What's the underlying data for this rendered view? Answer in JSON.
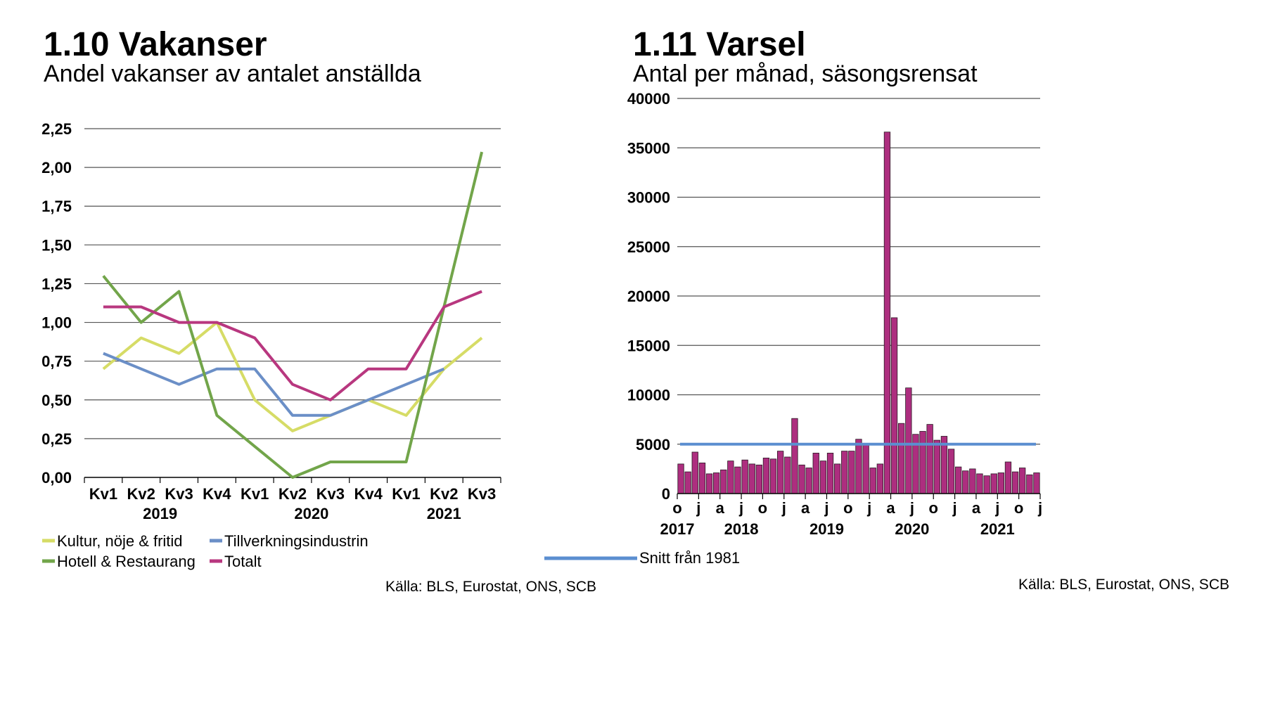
{
  "panels": {
    "left": {
      "title": "1.10 Vakanser",
      "subtitle": "Andel vakanser av antalet anställda",
      "source": "Källa: BLS, Eurostat, ONS, SCB"
    },
    "right": {
      "title": "1.11 Varsel",
      "subtitle": "Antal per månad, säsongsrensat",
      "source": "Källa: BLS, Eurostat, ONS, SCB"
    }
  },
  "chart_data": [
    {
      "type": "line",
      "title": "1.10 Vakanser",
      "subtitle": "Andel vakanser av antalet anställda",
      "categories": [
        "Kv1",
        "Kv2",
        "Kv3",
        "Kv4",
        "Kv1",
        "Kv2",
        "Kv3",
        "Kv4",
        "Kv1",
        "Kv2",
        "Kv3"
      ],
      "year_labels": [
        {
          "label": "2019",
          "category_index": 1.5
        },
        {
          "label": "2020",
          "category_index": 5.5
        },
        {
          "label": "2021",
          "category_index": 9
        }
      ],
      "y_ticks": [
        "0,00",
        "0,25",
        "0,50",
        "0,75",
        "1,00",
        "1,25",
        "1,50",
        "1,75",
        "2,00",
        "2,25"
      ],
      "ylim": [
        0,
        2.25
      ],
      "grid": true,
      "legend_position": "bottom",
      "series": [
        {
          "name": "Kultur, nöje & fritid",
          "color": "#d6dc66",
          "values": [
            0.7,
            0.9,
            0.8,
            1.0,
            0.5,
            0.3,
            0.4,
            0.5,
            0.4,
            0.7,
            0.9
          ]
        },
        {
          "name": "Tillverkningsindustrin",
          "color": "#6b8fc7",
          "values": [
            0.8,
            0.7,
            0.6,
            0.7,
            0.7,
            0.4,
            0.4,
            0.5,
            0.6,
            0.7,
            null
          ]
        },
        {
          "name": "Hotell & Restaurang",
          "color": "#72a54a",
          "values": [
            1.3,
            1.0,
            1.2,
            0.4,
            0.2,
            0.0,
            0.1,
            0.1,
            0.1,
            1.1,
            2.1
          ]
        },
        {
          "name": "Totalt",
          "color": "#b8377f",
          "values": [
            1.1,
            1.1,
            1.0,
            1.0,
            0.9,
            0.6,
            0.5,
            0.7,
            0.7,
            1.1,
            1.2
          ]
        }
      ]
    },
    {
      "type": "bar",
      "title": "1.11 Varsel",
      "subtitle": "Antal per månad, säsongsrensat",
      "start_month": "2017-10",
      "x_tick_labels": [
        "o",
        "j",
        "a",
        "j",
        "o",
        "j",
        "a",
        "j",
        "o",
        "j",
        "a",
        "j",
        "o",
        "j",
        "a",
        "j",
        "o",
        "j"
      ],
      "year_labels": [
        {
          "label": "2017",
          "month_index": 0
        },
        {
          "label": "2018",
          "month_index": 9
        },
        {
          "label": "2019",
          "month_index": 21
        },
        {
          "label": "2020",
          "month_index": 33
        },
        {
          "label": "2021",
          "month_index": 45
        }
      ],
      "y_ticks": [
        "0",
        "5000",
        "10000",
        "15000",
        "20000",
        "25000",
        "30000",
        "35000",
        "40000"
      ],
      "ylim": [
        0,
        40000
      ],
      "grid": true,
      "legend_position": "bottom-left",
      "bar_color": "#ad2e7f",
      "values": [
        3000,
        2200,
        4200,
        3100,
        2000,
        2100,
        2400,
        3300,
        2700,
        3400,
        3000,
        2900,
        3600,
        3500,
        4300,
        3700,
        7600,
        2900,
        2600,
        4100,
        3300,
        4100,
        3000,
        4300,
        4300,
        5500,
        5000,
        2600,
        3000,
        36600,
        17800,
        7100,
        10700,
        6000,
        6300,
        7000,
        5400,
        5800,
        4500,
        2700,
        2300,
        2500,
        2000,
        1800,
        2000,
        2100,
        3200,
        2200,
        2600,
        1900,
        2100
      ],
      "reference_line": {
        "name": "Snitt från 1981",
        "value": 5000,
        "color": "#5b8ed0"
      }
    }
  ]
}
